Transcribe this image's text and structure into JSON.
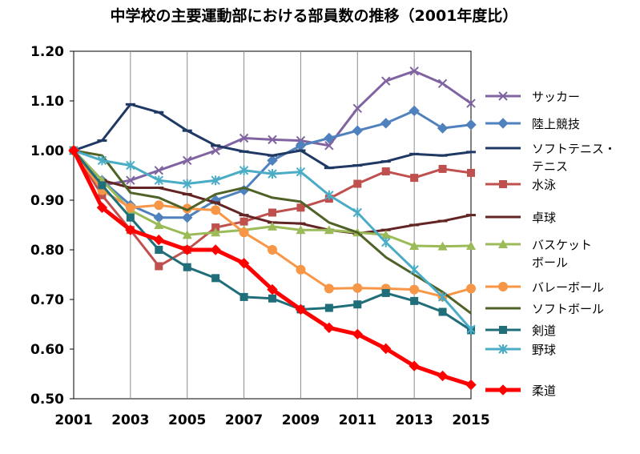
{
  "chart_data": {
    "type": "line",
    "title": "中学校の主要運動部における部員数の推移（2001年度比）",
    "xlabel": "",
    "ylabel": "",
    "x": [
      2001,
      2002,
      2003,
      2004,
      2005,
      2006,
      2007,
      2008,
      2009,
      2010,
      2011,
      2012,
      2013,
      2014,
      2015
    ],
    "x_tick_labels": [
      "2001",
      "2003",
      "2005",
      "2007",
      "2009",
      "2011",
      "2013",
      "2015"
    ],
    "y_tick_labels": [
      "1.20",
      "1.10",
      "1.00",
      "0.90",
      "0.80",
      "0.70",
      "0.60",
      "0.50"
    ],
    "ylim": [
      0.5,
      1.2
    ],
    "grid": "vertical",
    "legend_position": "right",
    "series": [
      {
        "name": "サッカー",
        "color": "#8064A2",
        "marker": "x",
        "values": [
          1.0,
          0.93,
          0.94,
          0.96,
          0.98,
          1.0,
          1.025,
          1.022,
          1.02,
          1.01,
          1.085,
          1.14,
          1.16,
          1.135,
          1.095
        ]
      },
      {
        "name": "陸上競技",
        "color": "#4F81BD",
        "marker": "diamond",
        "values": [
          1.0,
          0.94,
          0.89,
          0.865,
          0.865,
          0.9,
          0.92,
          0.98,
          1.01,
          1.025,
          1.04,
          1.055,
          1.08,
          1.045,
          1.052
        ]
      },
      {
        "name": "ソフトテニス・テニス",
        "color": "#1F3864",
        "marker": "dash",
        "values": [
          1.0,
          1.02,
          1.093,
          1.077,
          1.04,
          1.01,
          0.998,
          0.99,
          1.0,
          0.965,
          0.97,
          0.978,
          0.993,
          0.99,
          0.997
        ]
      },
      {
        "name": "水泳",
        "color": "#C0504D",
        "marker": "square",
        "values": [
          1.0,
          0.91,
          0.84,
          0.767,
          0.8,
          0.845,
          0.857,
          0.875,
          0.885,
          0.903,
          0.933,
          0.958,
          0.945,
          0.963,
          0.955
        ]
      },
      {
        "name": "卓球",
        "color": "#632523",
        "marker": "dash",
        "values": [
          1.0,
          0.94,
          0.925,
          0.925,
          0.912,
          0.895,
          0.87,
          0.855,
          0.853,
          0.84,
          0.833,
          0.84,
          0.85,
          0.858,
          0.87
        ]
      },
      {
        "name": "バスケットボール",
        "color": "#9BBB59",
        "marker": "triangle",
        "values": [
          1.0,
          0.94,
          0.88,
          0.85,
          0.83,
          0.835,
          0.84,
          0.847,
          0.84,
          0.84,
          0.835,
          0.83,
          0.808,
          0.807,
          0.808
        ]
      },
      {
        "name": "バレーボール",
        "color": "#F79646",
        "marker": "circle",
        "values": [
          1.0,
          0.92,
          0.885,
          0.89,
          0.883,
          0.88,
          0.835,
          0.8,
          0.76,
          0.722,
          0.723,
          0.722,
          0.72,
          0.706,
          0.722
        ]
      },
      {
        "name": "ソフトボール",
        "color": "#4F6228",
        "marker": "none",
        "values": [
          1.0,
          0.99,
          0.915,
          0.905,
          0.88,
          0.912,
          0.925,
          0.905,
          0.897,
          0.855,
          0.835,
          0.785,
          0.75,
          0.715,
          0.672
        ]
      },
      {
        "name": "剣道",
        "color": "#1F6E7A",
        "marker": "square",
        "values": [
          1.0,
          0.93,
          0.865,
          0.8,
          0.765,
          0.743,
          0.705,
          0.702,
          0.68,
          0.683,
          0.69,
          0.713,
          0.697,
          0.675,
          0.638
        ]
      },
      {
        "name": "野球",
        "color": "#4BACC6",
        "marker": "star",
        "values": [
          1.0,
          0.98,
          0.97,
          0.94,
          0.933,
          0.94,
          0.96,
          0.953,
          0.957,
          0.91,
          0.875,
          0.815,
          0.76,
          0.705,
          0.64
        ]
      },
      {
        "name": "柔道",
        "color": "#FF0000",
        "marker": "diamond",
        "values": [
          1.0,
          0.885,
          0.84,
          0.82,
          0.8,
          0.8,
          0.773,
          0.72,
          0.68,
          0.643,
          0.63,
          0.601,
          0.566,
          0.546,
          0.528
        ]
      }
    ],
    "legend": [
      {
        "lines": [
          "サッカー"
        ]
      },
      {
        "lines": [
          "陸上競技"
        ]
      },
      {
        "lines": [
          "ソフトテニス・",
          "テニス"
        ]
      },
      {
        "lines": [
          "水泳"
        ]
      },
      {
        "lines": [
          "卓球"
        ]
      },
      {
        "lines": [
          "バスケット",
          "ボール"
        ]
      },
      {
        "lines": [
          "バレーボール"
        ]
      },
      {
        "lines": [
          "ソフトボール"
        ]
      },
      {
        "lines": [
          "剣道"
        ]
      },
      {
        "lines": [
          "野球"
        ]
      },
      {
        "lines": [
          "柔道"
        ]
      }
    ]
  }
}
